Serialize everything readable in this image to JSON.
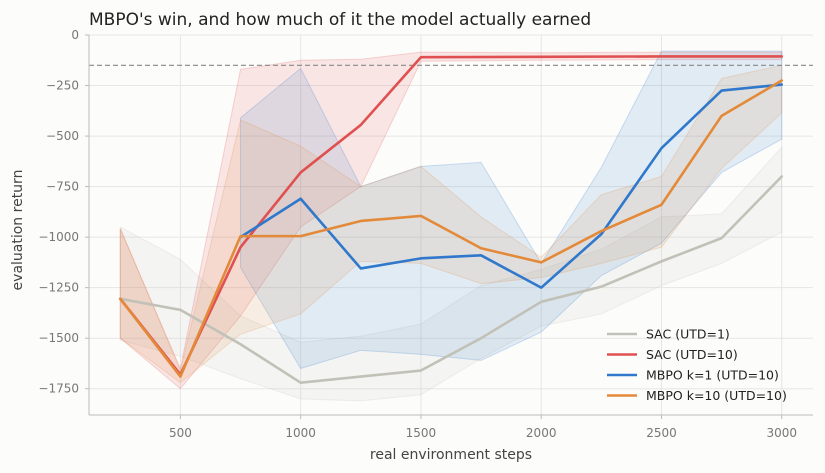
{
  "chart_data": {
    "type": "line",
    "title": "MBPO's win, and how much of it the model actually earned",
    "xlabel": "real environment steps",
    "ylabel": "evaluation return",
    "xlim": [
      120,
      3130
    ],
    "ylim": [
      -1880,
      0
    ],
    "xticks": [
      500,
      1000,
      1500,
      2000,
      2500,
      3000
    ],
    "yticks": [
      0,
      -250,
      -500,
      -750,
      -1000,
      -1250,
      -1500,
      -1750
    ],
    "grid": true,
    "legend_position": "lower-right",
    "reference_line": {
      "y": -150,
      "style": "dashed",
      "color": "#888888"
    },
    "series": [
      {
        "name": "SAC (UTD=1)",
        "color": "#c2c1b8",
        "x": [
          250,
          500,
          750,
          1000,
          1250,
          1500,
          1750,
          2000,
          2250,
          2500,
          2750,
          3000
        ],
        "y": [
          -1305,
          -1360,
          -1530,
          -1720,
          -1690,
          -1660,
          -1500,
          -1320,
          -1245,
          -1120,
          -1005,
          -700
        ],
        "lower": [
          -1510,
          -1590,
          -1700,
          -1800,
          -1810,
          -1780,
          -1600,
          -1440,
          -1380,
          -1240,
          -1130,
          -975
        ],
        "upper": [
          -950,
          -1110,
          -1390,
          -1520,
          -1490,
          -1430,
          -1240,
          -1160,
          -1060,
          -900,
          -885,
          -555
        ]
      },
      {
        "name": "SAC (UTD=10)",
        "color": "#e05050",
        "x": [
          250,
          500,
          750,
          1000,
          1250,
          1500,
          2000,
          2500,
          3000
        ],
        "y": [
          -1305,
          -1680,
          -1050,
          -680,
          -445,
          -110,
          -108,
          -106,
          -106
        ],
        "lower": [
          -1500,
          -1750,
          -1390,
          -950,
          -750,
          -130,
          -125,
          -122,
          -122
        ],
        "upper": [
          -960,
          -1650,
          -170,
          -125,
          -120,
          -85,
          -88,
          -85,
          -85
        ]
      },
      {
        "name": "MBPO k=1 (UTD=10)",
        "color": "#2f78cc",
        "x": [
          750,
          1000,
          1250,
          1500,
          1750,
          2000,
          2250,
          2500,
          2750,
          3000
        ],
        "y": [
          -1000,
          -810,
          -1155,
          -1105,
          -1090,
          -1250,
          -985,
          -560,
          -275,
          -245
        ],
        "lower": [
          -1150,
          -1650,
          -1560,
          -1580,
          -1610,
          -1470,
          -1190,
          -1030,
          -680,
          -515
        ],
        "upper": [
          -410,
          -165,
          -750,
          -650,
          -630,
          -1130,
          -655,
          -80,
          -80,
          -80
        ]
      },
      {
        "name": "MBPO k=10 (UTD=10)",
        "color": "#e38a3a",
        "x": [
          250,
          500,
          750,
          1000,
          1250,
          1500,
          1750,
          2000,
          2250,
          2500,
          2750,
          3000
        ],
        "y": [
          -1305,
          -1690,
          -995,
          -995,
          -920,
          -895,
          -1055,
          -1125,
          -970,
          -840,
          -400,
          -225
        ],
        "lower": [
          -1500,
          -1720,
          -1480,
          -1380,
          -1120,
          -1130,
          -1230,
          -1200,
          -1130,
          -1050,
          -660,
          -385
        ],
        "upper": [
          -955,
          -1660,
          -420,
          -550,
          -750,
          -650,
          -900,
          -1100,
          -790,
          -700,
          -215,
          -150
        ]
      }
    ]
  }
}
